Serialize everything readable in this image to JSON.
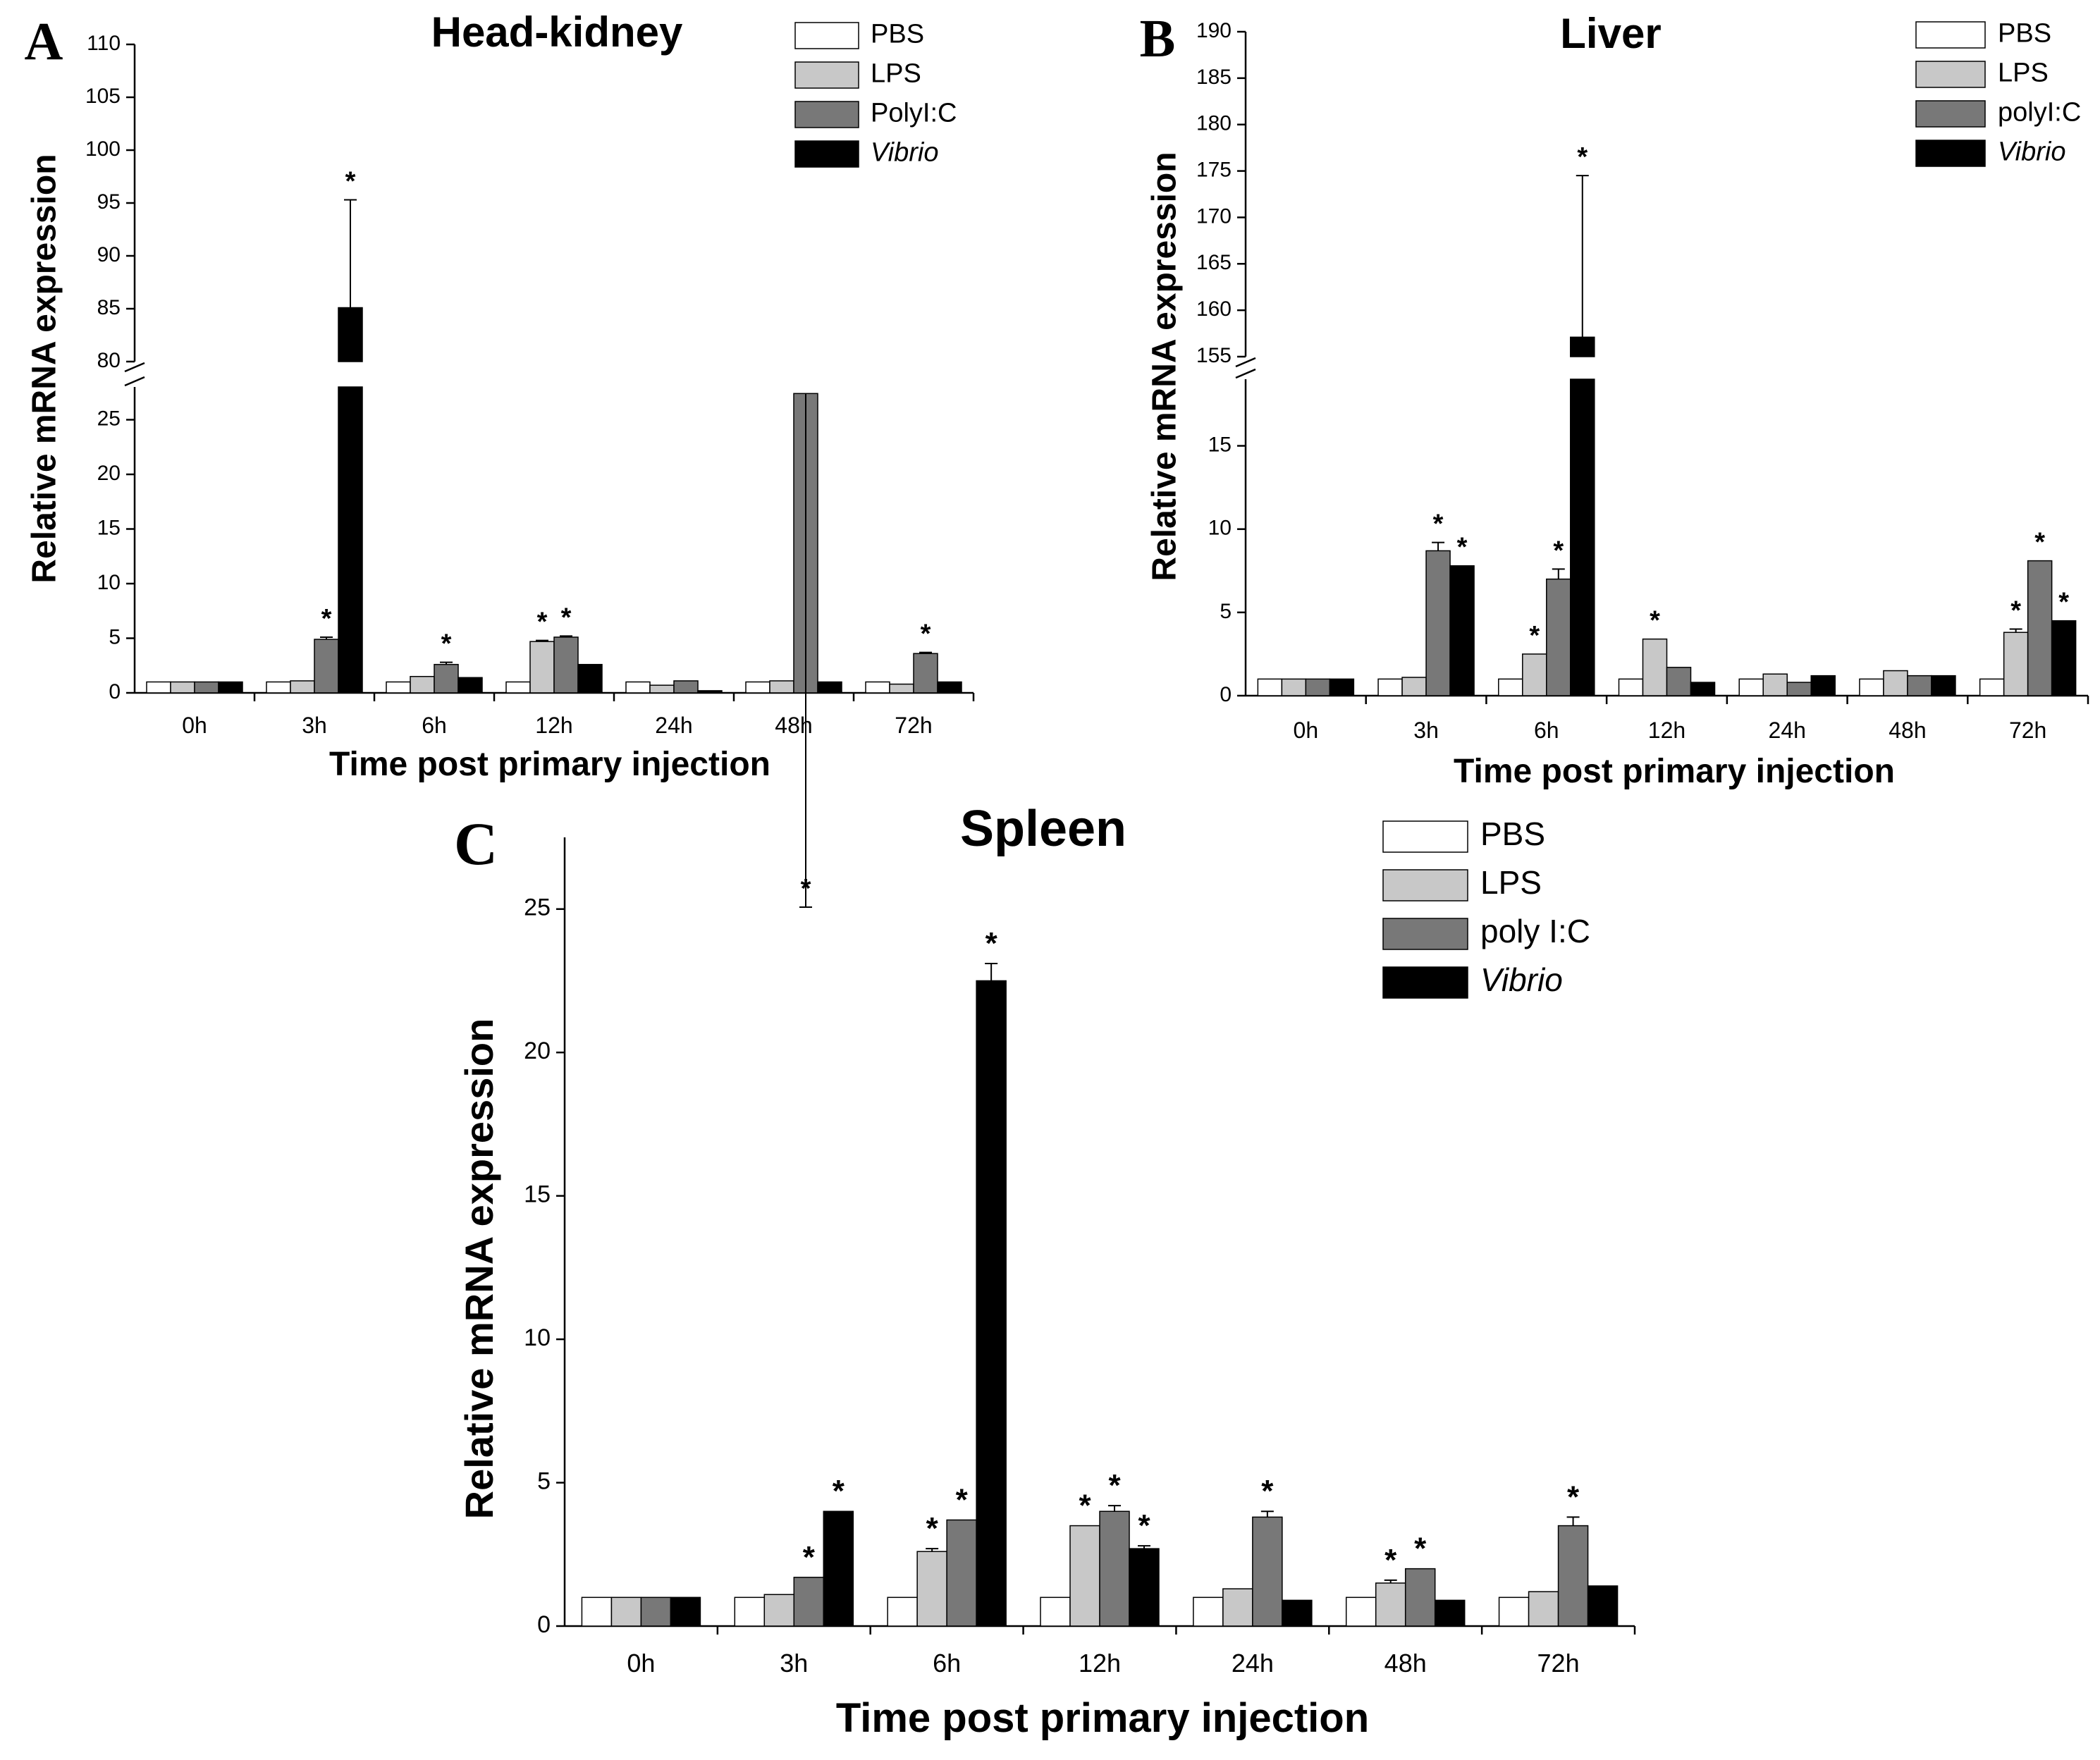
{
  "chart_data": [
    {
      "type": "bar",
      "panel_label": "A",
      "title": "Head-kidney",
      "xlabel": "Time post primary injection",
      "ylabel": "Relative mRNA expression",
      "categories": [
        "0h",
        "3h",
        "6h",
        "12h",
        "24h",
        "48h",
        "72h"
      ],
      "axis_break": {
        "lower": [
          0,
          28
        ],
        "upper": [
          80,
          110
        ]
      },
      "y_ticks_lower": [
        0,
        5,
        10,
        15,
        20,
        25
      ],
      "y_ticks_upper": [
        80,
        85,
        90,
        95,
        100,
        105,
        110
      ],
      "series": [
        {
          "name": "PBS",
          "values": [
            1,
            1,
            1,
            1,
            1,
            1,
            1
          ],
          "errors": [
            0,
            0,
            0,
            0,
            0,
            0,
            0
          ],
          "significant": [
            false,
            false,
            false,
            false,
            false,
            false,
            false
          ]
        },
        {
          "name": "LPS",
          "values": [
            1,
            1.1,
            1.5,
            4.7,
            0.7,
            1.1,
            0.8
          ],
          "errors": [
            0,
            0,
            0,
            0.1,
            0,
            0,
            0
          ],
          "significant": [
            false,
            false,
            false,
            true,
            false,
            false,
            false
          ]
        },
        {
          "name": "PolyI:C",
          "values": [
            1,
            4.9,
            2.6,
            5.1,
            1.1,
            27.4,
            3.6
          ],
          "errors": [
            0,
            0.2,
            0.2,
            0.1,
            0,
            1.0,
            0.1
          ],
          "significant": [
            false,
            true,
            true,
            true,
            false,
            true,
            true
          ]
        },
        {
          "name": "Vibrio",
          "values": [
            1,
            85.1,
            1.4,
            2.6,
            0.2,
            1.0,
            1.0
          ],
          "errors": [
            0,
            10.2,
            0,
            0,
            0,
            0,
            0
          ],
          "significant": [
            false,
            true,
            false,
            false,
            false,
            false,
            false
          ]
        }
      ],
      "legend": [
        "PBS",
        "LPS",
        "PolyI:C",
        "Vibrio"
      ],
      "legend_position": "top-right",
      "significance_mark": "*"
    },
    {
      "type": "bar",
      "panel_label": "B",
      "title": "Liver",
      "xlabel": "Time post primary injection",
      "ylabel": "Relative mRNA expression",
      "categories": [
        "0h",
        "3h",
        "6h",
        "12h",
        "24h",
        "48h",
        "72h"
      ],
      "axis_break": {
        "lower": [
          0,
          19
        ],
        "upper": [
          155,
          190
        ]
      },
      "y_ticks_lower": [
        0,
        5,
        10,
        15
      ],
      "y_ticks_upper": [
        155,
        160,
        165,
        170,
        175,
        180,
        185,
        190
      ],
      "series": [
        {
          "name": "PBS",
          "values": [
            1,
            1,
            1,
            1,
            1,
            1,
            1
          ],
          "errors": [
            0,
            0,
            0,
            0,
            0,
            0,
            0
          ],
          "significant": [
            false,
            false,
            false,
            false,
            false,
            false,
            false
          ]
        },
        {
          "name": "LPS",
          "values": [
            1,
            1.1,
            2.5,
            3.4,
            1.3,
            1.5,
            3.8
          ],
          "errors": [
            0,
            0,
            0,
            0,
            0,
            0,
            0.2
          ],
          "significant": [
            false,
            false,
            true,
            true,
            false,
            false,
            true
          ]
        },
        {
          "name": "polyI:C",
          "values": [
            1,
            8.7,
            7.0,
            1.7,
            0.8,
            1.2,
            8.1
          ],
          "errors": [
            0,
            0.5,
            0.6,
            0,
            0,
            0,
            0
          ],
          "significant": [
            false,
            true,
            true,
            false,
            false,
            false,
            true
          ]
        },
        {
          "name": "Vibrio",
          "values": [
            1,
            7.8,
            157.1,
            0.8,
            1.2,
            1.2,
            4.5
          ],
          "errors": [
            0,
            0,
            17.4,
            0,
            0,
            0,
            0
          ],
          "significant": [
            false,
            true,
            true,
            false,
            false,
            false,
            true
          ]
        }
      ],
      "legend": [
        "PBS",
        "LPS",
        "polyI:C",
        "Vibrio"
      ],
      "legend_position": "top-right",
      "significance_mark": "*"
    },
    {
      "type": "bar",
      "panel_label": "C",
      "title": "Spleen",
      "xlabel": "Time post primary injection",
      "ylabel": "Relative mRNA expression",
      "categories": [
        "0h",
        "3h",
        "6h",
        "12h",
        "24h",
        "48h",
        "72h"
      ],
      "ylim": [
        0,
        27.5
      ],
      "y_ticks": [
        0,
        5,
        10,
        15,
        20,
        25
      ],
      "series": [
        {
          "name": "PBS",
          "values": [
            1,
            1,
            1,
            1,
            1,
            1,
            1
          ],
          "errors": [
            0,
            0,
            0,
            0,
            0,
            0,
            0
          ],
          "significant": [
            false,
            false,
            false,
            false,
            false,
            false,
            false
          ]
        },
        {
          "name": "LPS",
          "values": [
            1,
            1.1,
            2.6,
            3.5,
            1.3,
            1.5,
            1.2
          ],
          "errors": [
            0,
            0,
            0.1,
            0,
            0,
            0.1,
            0
          ],
          "significant": [
            false,
            false,
            true,
            true,
            false,
            true,
            false
          ]
        },
        {
          "name": "poly I:C",
          "values": [
            1,
            1.7,
            3.7,
            4.0,
            3.8,
            2.0,
            3.5
          ],
          "errors": [
            0,
            0,
            0,
            0.2,
            0.2,
            0,
            0.3
          ],
          "significant": [
            false,
            true,
            true,
            true,
            true,
            true,
            true
          ]
        },
        {
          "name": "Vibrio",
          "values": [
            1,
            4.0,
            22.5,
            2.7,
            0.9,
            0.9,
            1.4
          ],
          "errors": [
            0,
            0,
            0.6,
            0.1,
            0,
            0,
            0
          ],
          "significant": [
            false,
            true,
            true,
            true,
            false,
            false,
            false
          ]
        }
      ],
      "legend": [
        "PBS",
        "LPS",
        "poly I:C",
        "Vibrio"
      ],
      "legend_position": "top-right",
      "significance_mark": "*"
    }
  ],
  "series_colors": [
    "#ffffff",
    "#c8c8c8",
    "#787878",
    "#000000"
  ]
}
